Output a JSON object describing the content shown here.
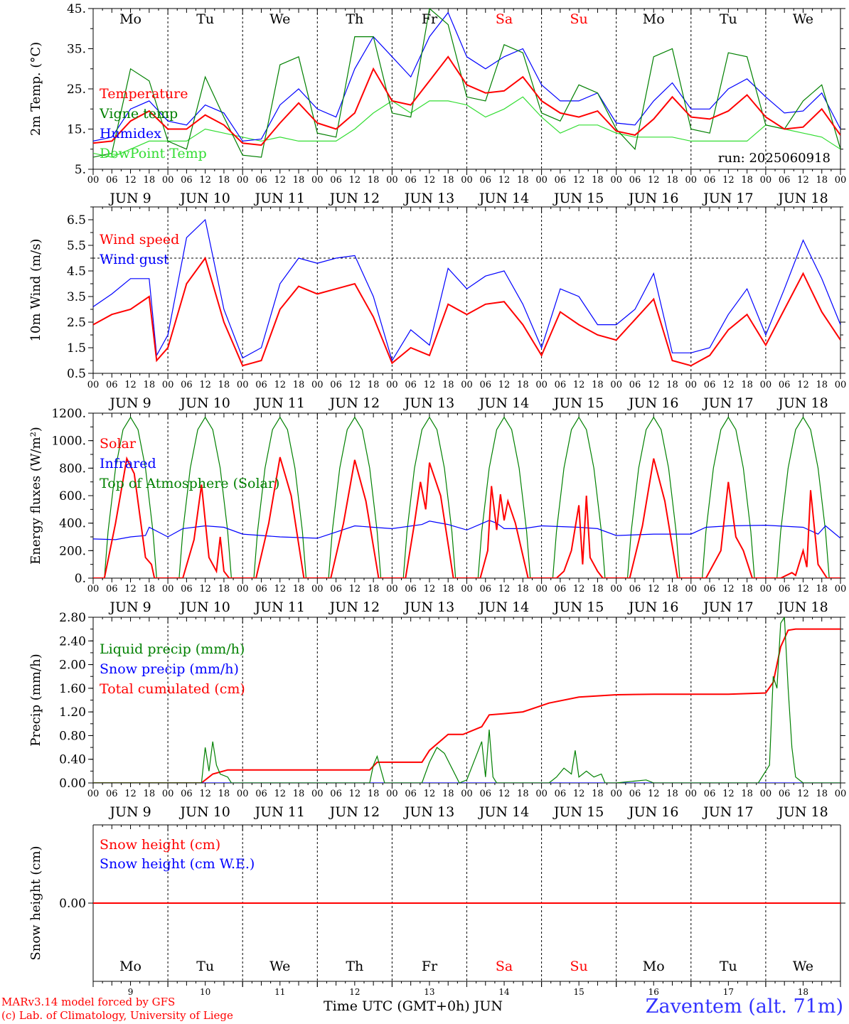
{
  "station": "Zaventem (alt. 71m)",
  "credits": [
    "MARv3.14 model forced by GFS",
    "(c) Lab. of Climatology, University of Liege"
  ],
  "bottom_axis_label": "Time UTC (GMT+0h)",
  "bottom_axis_month": "JUN",
  "colors": {
    "red": "#ff0000",
    "green": "#008000",
    "blue": "#0000ff",
    "lightgreen": "#33dd33",
    "station": "#3333ff"
  },
  "time_axis": {
    "days": [
      "Mo",
      "Tu",
      "We",
      "Th",
      "Fr",
      "Sa",
      "Su",
      "Mo",
      "Tu",
      "We"
    ],
    "weekend_days": [
      "Sa",
      "Su"
    ],
    "date_labels": [
      "JUN  9",
      "JUN 10",
      "JUN 11",
      "JUN 12",
      "JUN 13",
      "JUN 14",
      "JUN 15",
      "JUN 16",
      "JUN 17",
      "JUN 18"
    ],
    "day_numbers": [
      "9",
      "10",
      "11",
      "12",
      "13",
      "14",
      "15",
      "16",
      "17",
      "18"
    ],
    "hour_ticks": [
      "00",
      "06",
      "12",
      "18"
    ]
  },
  "chart_data": [
    {
      "type": "line",
      "ylabel": "2m Temp. (°C)",
      "ylim": [
        5,
        45
      ],
      "y_ticks": [
        "45.",
        "35.",
        "25.",
        "15.",
        "5."
      ],
      "annotation": "run: 2025060918",
      "x_unit": "days since JUN 9 00 UTC",
      "series": [
        {
          "name": "Temperature",
          "color": "#ff0000",
          "x": [
            0,
            0.25,
            0.5,
            0.75,
            1,
            1.25,
            1.5,
            1.75,
            2,
            2.25,
            2.5,
            2.75,
            3,
            3.25,
            3.5,
            3.75,
            4,
            4.25,
            4.5,
            4.75,
            5,
            5.25,
            5.5,
            5.75,
            6,
            6.25,
            6.5,
            6.75,
            7,
            7.25,
            7.5,
            7.75,
            8,
            8.25,
            8.5,
            8.75,
            9,
            9.25,
            9.5,
            9.75,
            10
          ],
          "y": [
            11.5,
            12,
            17,
            19.5,
            15,
            15,
            18.5,
            16,
            11.5,
            11,
            16.5,
            21.5,
            16.5,
            15,
            19,
            30,
            22,
            21,
            27,
            33,
            26,
            24,
            24.5,
            28,
            22,
            19,
            18,
            19.5,
            14.5,
            13.5,
            17.5,
            23,
            18,
            17.5,
            19.5,
            23.5,
            18,
            15,
            15.5,
            20,
            13.5
          ]
        },
        {
          "name": "Vigne temp",
          "color": "#008000",
          "x": [
            0,
            0.25,
            0.5,
            0.75,
            1,
            1.25,
            1.5,
            1.75,
            2,
            2.25,
            2.5,
            2.75,
            3,
            3.25,
            3.5,
            3.75,
            4,
            4.25,
            4.5,
            4.75,
            5,
            5.25,
            5.5,
            5.75,
            6,
            6.25,
            6.5,
            6.75,
            7,
            7.25,
            7.5,
            7.75,
            8,
            8.25,
            8.5,
            8.75,
            9,
            9.25,
            9.5,
            9.75,
            10
          ],
          "y": [
            8,
            9,
            30,
            27,
            12,
            10,
            28,
            18,
            8.5,
            8,
            31,
            33,
            14,
            13,
            38,
            38,
            19,
            18,
            45,
            41,
            23,
            22,
            36,
            34,
            19,
            17,
            26,
            24,
            15,
            10,
            33,
            35,
            15,
            14,
            34,
            33,
            16,
            15,
            22,
            26,
            10
          ]
        },
        {
          "name": "Humidex",
          "color": "#0000ff",
          "x": [
            0,
            0.25,
            0.5,
            0.75,
            1,
            1.25,
            1.5,
            1.75,
            2,
            2.25,
            2.5,
            2.75,
            3,
            3.25,
            3.5,
            3.75,
            4,
            4.25,
            4.5,
            4.75,
            5,
            5.25,
            5.5,
            5.75,
            6,
            6.25,
            6.5,
            6.75,
            7,
            7.25,
            7.5,
            7.75,
            8,
            8.25,
            8.5,
            8.75,
            9,
            9.25,
            9.5,
            9.75,
            10
          ],
          "y": [
            12,
            13,
            20,
            22,
            17,
            16,
            21,
            19,
            12,
            12.5,
            21,
            25,
            20,
            18,
            30,
            38,
            33,
            28,
            38,
            44,
            33,
            30,
            33,
            35,
            26,
            22,
            22,
            24,
            16.5,
            16,
            22,
            26.5,
            20,
            20,
            25,
            27.5,
            23,
            19,
            19.5,
            24,
            15
          ]
        },
        {
          "name": "DewPoint Temp",
          "color": "#33dd33",
          "x": [
            0,
            0.25,
            0.5,
            0.75,
            1,
            1.25,
            1.5,
            1.75,
            2,
            2.25,
            2.5,
            2.75,
            3,
            3.25,
            3.5,
            3.75,
            4,
            4.25,
            4.5,
            4.75,
            5,
            5.25,
            5.5,
            5.75,
            6,
            6.25,
            6.5,
            6.75,
            7,
            7.25,
            7.5,
            7.75,
            8,
            8.25,
            8.5,
            8.75,
            9,
            9.25,
            9.5,
            9.75,
            10
          ],
          "y": [
            9,
            8,
            10,
            12,
            12,
            12,
            15,
            14,
            13,
            12,
            13,
            12,
            12,
            12,
            15,
            19,
            22,
            19,
            22,
            22,
            21,
            18,
            20,
            23,
            18,
            14,
            16,
            16,
            14,
            13,
            13,
            13,
            12,
            12,
            12,
            12,
            16,
            15,
            14,
            13,
            10
          ]
        }
      ]
    },
    {
      "type": "line",
      "ylabel": "10m Wind (m/s)",
      "ylim": [
        0.5,
        7.0
      ],
      "y_ticks": [
        "6.5",
        "5.5",
        "4.5",
        "3.5",
        "2.5",
        "1.5",
        "0.5"
      ],
      "reference_line": 5,
      "x_unit": "days since JUN 9 00 UTC",
      "series": [
        {
          "name": "Wind speed",
          "color": "#ff0000",
          "x": [
            0,
            0.25,
            0.5,
            0.75,
            0.85,
            1,
            1.25,
            1.5,
            1.75,
            2,
            2.25,
            2.5,
            2.75,
            3,
            3.25,
            3.5,
            3.75,
            4,
            4.25,
            4.5,
            4.75,
            5,
            5.25,
            5.5,
            5.75,
            6,
            6.25,
            6.5,
            6.75,
            7,
            7.25,
            7.5,
            7.75,
            8,
            8.25,
            8.5,
            8.75,
            9,
            9.25,
            9.5,
            9.75,
            10
          ],
          "y": [
            2.4,
            2.8,
            3,
            3.5,
            1,
            1.5,
            4,
            5,
            2.5,
            0.8,
            1,
            3,
            3.9,
            3.6,
            3.8,
            4,
            2.7,
            0.9,
            1.5,
            1.2,
            3.2,
            2.8,
            3.2,
            3.3,
            2.4,
            1.2,
            2.9,
            2.4,
            2,
            1.8,
            2.6,
            3.4,
            1,
            0.8,
            1.2,
            2.2,
            2.8,
            1.6,
            3,
            4.4,
            2.9,
            1.8
          ]
        },
        {
          "name": "Wind gust",
          "color": "#0000ff",
          "x": [
            0,
            0.25,
            0.5,
            0.75,
            0.85,
            1,
            1.25,
            1.5,
            1.75,
            2,
            2.25,
            2.5,
            2.75,
            3,
            3.25,
            3.5,
            3.75,
            4,
            4.25,
            4.5,
            4.75,
            5,
            5.25,
            5.5,
            5.75,
            6,
            6.25,
            6.5,
            6.75,
            7,
            7.25,
            7.5,
            7.75,
            8,
            8.25,
            8.5,
            8.75,
            9,
            9.25,
            9.5,
            9.75,
            10
          ],
          "y": [
            3.1,
            3.6,
            4.2,
            4.2,
            1.2,
            2,
            5.8,
            6.5,
            3,
            1.1,
            1.5,
            4,
            5,
            4.8,
            5,
            5.1,
            3.5,
            1,
            2.2,
            1.6,
            4.6,
            3.8,
            4.3,
            4.5,
            3.2,
            1.5,
            3.8,
            3.5,
            2.4,
            2.4,
            3,
            4.4,
            1.3,
            1.3,
            1.5,
            2.8,
            3.8,
            2,
            3.8,
            5.7,
            4.2,
            2.4
          ]
        }
      ]
    },
    {
      "type": "line",
      "ylabel": "Energy fluxes (W/m²)",
      "ylim": [
        0,
        1200
      ],
      "y_ticks": [
        "1200.",
        "1000.",
        "800.",
        "600.",
        "400.",
        "200.",
        "0."
      ],
      "x_unit": "days since JUN 9 00 UTC",
      "series": [
        {
          "name": "Solar",
          "color": "#ff0000",
          "x": [
            0,
            0.15,
            0.3,
            0.45,
            0.55,
            0.7,
            0.78,
            0.82,
            0.86,
            1,
            1.2,
            1.35,
            1.45,
            1.55,
            1.65,
            1.7,
            1.75,
            1.82,
            2,
            2.18,
            2.35,
            2.5,
            2.65,
            2.82,
            3,
            3.18,
            3.35,
            3.5,
            3.65,
            3.82,
            4,
            4.18,
            4.3,
            4.38,
            4.45,
            4.5,
            4.65,
            4.82,
            5,
            5.18,
            5.28,
            5.33,
            5.4,
            5.45,
            5.5,
            5.55,
            5.65,
            5.82,
            6,
            6.2,
            6.3,
            6.4,
            6.5,
            6.55,
            6.6,
            6.65,
            6.75,
            6.82,
            7,
            7.18,
            7.35,
            7.5,
            7.65,
            7.82,
            8,
            8.2,
            8.4,
            8.5,
            8.6,
            8.7,
            8.82,
            9,
            9.2,
            9.35,
            9.4,
            9.5,
            9.55,
            9.6,
            9.7,
            9.82,
            10
          ],
          "y": [
            0,
            0,
            400,
            870,
            760,
            150,
            100,
            0,
            0,
            0,
            0,
            280,
            680,
            150,
            50,
            300,
            50,
            0,
            0,
            0,
            400,
            880,
            600,
            0,
            0,
            0,
            400,
            860,
            560,
            0,
            0,
            0,
            400,
            700,
            500,
            840,
            600,
            0,
            0,
            0,
            200,
            670,
            350,
            610,
            420,
            560,
            400,
            0,
            0,
            0,
            50,
            200,
            530,
            100,
            600,
            150,
            50,
            0,
            0,
            0,
            380,
            870,
            560,
            0,
            0,
            0,
            200,
            700,
            300,
            200,
            0,
            0,
            0,
            40,
            20,
            200,
            80,
            640,
            100,
            0,
            0
          ]
        },
        {
          "name": "Infrared",
          "color": "#0000ff",
          "x": [
            0,
            0.3,
            0.5,
            0.7,
            0.75,
            1,
            1.2,
            1.5,
            1.75,
            2,
            2.5,
            3,
            3.5,
            3.75,
            4,
            4.4,
            4.5,
            4.75,
            5,
            5.3,
            5.4,
            5.5,
            5.75,
            6,
            6.5,
            6.75,
            7,
            7.5,
            8,
            8.2,
            8.5,
            9,
            9.5,
            9.7,
            9.8,
            10
          ],
          "y": [
            285,
            280,
            300,
            310,
            370,
            300,
            360,
            380,
            370,
            320,
            300,
            290,
            380,
            370,
            360,
            390,
            415,
            390,
            350,
            420,
            400,
            360,
            360,
            380,
            370,
            360,
            310,
            320,
            320,
            370,
            380,
            385,
            370,
            320,
            380,
            290
          ]
        },
        {
          "name": "Top of Atmosphere (Solar)",
          "color": "#008000",
          "x": [
            0,
            0.15,
            0.2,
            0.3,
            0.4,
            0.5,
            0.6,
            0.7,
            0.8,
            0.85,
            1
          ],
          "y": [
            0,
            0,
            340,
            800,
            1080,
            1170,
            1080,
            800,
            340,
            0,
            0
          ],
          "repeat_daily": true
        }
      ]
    },
    {
      "type": "line",
      "ylabel": "Precip (mm/h)",
      "ylim": [
        0,
        2.8
      ],
      "y_ticks": [
        "2.80",
        "2.40",
        "2.00",
        "1.60",
        "1.20",
        "0.80",
        "0.40",
        "0.00"
      ],
      "x_unit": "days since JUN 9 00 UTC",
      "series": [
        {
          "name": "Liquid precip (mm/h)",
          "color": "#008000",
          "x": [
            0,
            1.45,
            1.5,
            1.55,
            1.6,
            1.65,
            1.7,
            1.8,
            1.85,
            3.7,
            3.75,
            3.8,
            3.9,
            4.4,
            4.5,
            4.6,
            4.7,
            4.8,
            4.9,
            5,
            5.2,
            5.25,
            5.3,
            5.35,
            5.4,
            5.45,
            6.1,
            6.2,
            6.3,
            6.4,
            6.45,
            6.5,
            6.6,
            6.7,
            6.8,
            6.85,
            7,
            7.4,
            7.5,
            8.9,
            9.05,
            9.1,
            9.15,
            9.2,
            9.25,
            9.3,
            9.35,
            9.4,
            9.5,
            10
          ],
          "y": [
            0,
            0,
            0.6,
            0.2,
            0.7,
            0.3,
            0.15,
            0.1,
            0,
            0,
            0.3,
            0.45,
            0,
            0,
            0.35,
            0.6,
            0.5,
            0.25,
            0,
            0.05,
            0.7,
            0.1,
            0.9,
            0.1,
            0,
            0,
            0,
            0.1,
            0.25,
            0.15,
            0.55,
            0.1,
            0.2,
            0.1,
            0.15,
            0,
            0,
            0.05,
            0,
            0,
            0.3,
            1.8,
            1.6,
            2.7,
            2.8,
            1.6,
            0.6,
            0.1,
            0,
            0
          ]
        },
        {
          "name": "Snow precip (mm/h)",
          "color": "#0000ff",
          "x": [
            0,
            10
          ],
          "y": [
            0,
            0
          ]
        },
        {
          "name": "Total cumulated (cm)",
          "color": "#ff0000",
          "x": [
            0,
            1.45,
            1.6,
            1.8,
            3.7,
            3.8,
            4.4,
            4.5,
            4.75,
            4.95,
            5.2,
            5.3,
            5.5,
            5.75,
            6.1,
            6.5,
            7,
            7.5,
            8,
            8.5,
            9,
            9.1,
            9.2,
            9.3,
            9.4,
            10
          ],
          "y": [
            0,
            0,
            0.15,
            0.22,
            0.22,
            0.35,
            0.35,
            0.55,
            0.82,
            0.82,
            0.95,
            1.15,
            1.17,
            1.2,
            1.35,
            1.45,
            1.49,
            1.5,
            1.5,
            1.5,
            1.52,
            1.7,
            2.3,
            2.58,
            2.6,
            2.6
          ]
        }
      ]
    },
    {
      "type": "line",
      "ylabel": "Snow height (cm)",
      "y_ticks": [
        "0.00"
      ],
      "x_unit": "days since JUN 9 00 UTC",
      "series": [
        {
          "name": "Snow height (cm)",
          "color": "#ff0000",
          "x": [
            0,
            10
          ],
          "y": [
            0,
            0
          ]
        },
        {
          "name": "Snow height (cm W.E.)",
          "color": "#0000ff",
          "x": [
            0,
            10
          ],
          "y": [
            0,
            0
          ]
        }
      ]
    }
  ]
}
